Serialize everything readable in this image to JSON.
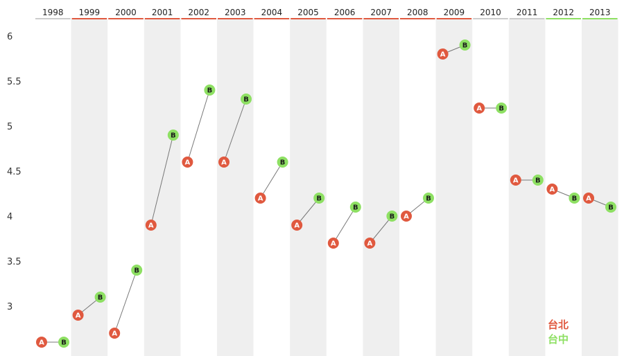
{
  "chart_data": {
    "type": "scatter",
    "categories": [
      "1998",
      "1999",
      "2000",
      "2001",
      "2002",
      "2003",
      "2004",
      "2005",
      "2006",
      "2007",
      "2008",
      "2009",
      "2010",
      "2011",
      "2012",
      "2013"
    ],
    "series": [
      {
        "name": "台北",
        "marker": "A",
        "color": "#e0593f",
        "values": [
          2.6,
          2.9,
          2.7,
          3.9,
          4.6,
          4.6,
          4.2,
          3.9,
          3.7,
          3.7,
          4.0,
          5.8,
          5.2,
          4.4,
          4.3,
          4.2
        ]
      },
      {
        "name": "台中",
        "marker": "B",
        "color": "#8ee063",
        "values": [
          2.6,
          3.1,
          3.4,
          4.9,
          5.4,
          5.3,
          4.6,
          4.2,
          4.1,
          4.0,
          4.2,
          5.9,
          5.2,
          4.4,
          4.2,
          4.1
        ]
      }
    ],
    "yticks": [
      3,
      3.5,
      4,
      4.5,
      5,
      5.5,
      6
    ],
    "ytick_labels": [
      "3",
      "3.5",
      "4",
      "4.5",
      "5",
      "5.5",
      "6"
    ],
    "ylim": [
      2.6,
      6.0
    ],
    "year_underline_colors": [
      "#cccccc",
      "#e0593f",
      "#e0593f",
      "#e0593f",
      "#e0593f",
      "#e0593f",
      "#e0593f",
      "#e0593f",
      "#e0593f",
      "#e0593f",
      "#e0593f",
      "#e0593f",
      "#cccccc",
      "#cccccc",
      "#8ee063",
      "#8ee063"
    ],
    "legend": {
      "entries": [
        "台北",
        "台中"
      ],
      "placement": "bottom-right"
    },
    "grid": false
  }
}
